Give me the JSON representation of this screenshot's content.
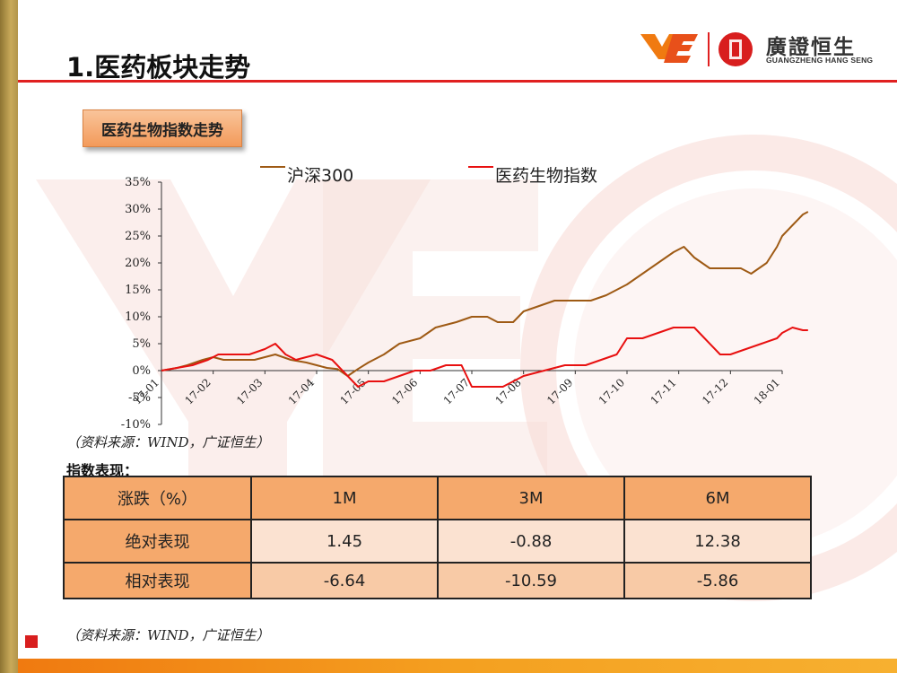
{
  "slide": {
    "title": "1.医药板块走势",
    "section_button": "医药生物指数走势",
    "logo": {
      "name": "廣證恒生",
      "subtitle": "GUANGZHENG HANG SENG"
    },
    "source_note_1": "（资料来源：WIND，广证恒生）",
    "source_note_2": "（资料来源：WIND，广证恒生）",
    "perf_label": "指数表现：",
    "colors": {
      "hs300": "#9e5a14",
      "pharma": "#e81010",
      "table_header": "#f5a96c",
      "title_rule": "#e02020"
    }
  },
  "table": {
    "headers": [
      "涨跌（%）",
      "1M",
      "3M",
      "6M"
    ],
    "rows": [
      [
        "绝对表现",
        "1.45",
        "-0.88",
        "12.38"
      ],
      [
        "相对表现",
        "-6.64",
        "-10.59",
        "-5.86"
      ]
    ]
  },
  "chart_data": {
    "type": "line",
    "x": [
      "17-01",
      "17-02",
      "17-03",
      "17-04",
      "17-05",
      "17-06",
      "17-07",
      "17-08",
      "17-09",
      "17-10",
      "17-11",
      "17-12",
      "18-01"
    ],
    "ylim": [
      -10,
      35
    ],
    "yticks": [
      "35%",
      "30%",
      "25%",
      "20%",
      "15%",
      "10%",
      "5%",
      "0%",
      "-5%",
      "-10%"
    ],
    "legend_position": "top",
    "series": [
      {
        "name": "沪深300",
        "color": "#9e5a14",
        "values": [
          [
            0,
            0
          ],
          [
            0.3,
            0.5
          ],
          [
            0.5,
            1
          ],
          [
            0.8,
            2
          ],
          [
            1,
            2.5
          ],
          [
            1.2,
            2
          ],
          [
            1.5,
            2
          ],
          [
            1.8,
            2
          ],
          [
            2,
            2.5
          ],
          [
            2.2,
            3
          ],
          [
            2.5,
            2
          ],
          [
            2.8,
            1.5
          ],
          [
            3,
            1
          ],
          [
            3.2,
            0.5
          ],
          [
            3.4,
            0.3
          ],
          [
            3.6,
            -1
          ],
          [
            3.8,
            0.3
          ],
          [
            4,
            1.5
          ],
          [
            4.3,
            3
          ],
          [
            4.6,
            5
          ],
          [
            5,
            6
          ],
          [
            5.3,
            8
          ],
          [
            5.7,
            9
          ],
          [
            6,
            10
          ],
          [
            6.3,
            10
          ],
          [
            6.5,
            9
          ],
          [
            6.8,
            9
          ],
          [
            7,
            11
          ],
          [
            7.3,
            12
          ],
          [
            7.6,
            13
          ],
          [
            8,
            13
          ],
          [
            8.3,
            13
          ],
          [
            8.6,
            14
          ],
          [
            9,
            16
          ],
          [
            9.3,
            18
          ],
          [
            9.6,
            20
          ],
          [
            9.9,
            22
          ],
          [
            10.1,
            23
          ],
          [
            10.3,
            21
          ],
          [
            10.6,
            19
          ],
          [
            10.9,
            19
          ],
          [
            11.2,
            19
          ],
          [
            11.4,
            18
          ],
          [
            11.7,
            20
          ],
          [
            11.9,
            23
          ],
          [
            12,
            25
          ],
          [
            12.2,
            27
          ],
          [
            12.4,
            29
          ],
          [
            12.5,
            29.5
          ]
        ]
      },
      {
        "name": "医药生物指数",
        "color": "#e81010",
        "values": [
          [
            0,
            0
          ],
          [
            0.3,
            0.5
          ],
          [
            0.6,
            1
          ],
          [
            0.9,
            2
          ],
          [
            1.1,
            3
          ],
          [
            1.4,
            3
          ],
          [
            1.7,
            3
          ],
          [
            2,
            4
          ],
          [
            2.2,
            5
          ],
          [
            2.4,
            3
          ],
          [
            2.6,
            2
          ],
          [
            3,
            3
          ],
          [
            3.3,
            2
          ],
          [
            3.5,
            0
          ],
          [
            3.8,
            -3
          ],
          [
            4,
            -2
          ],
          [
            4.3,
            -2
          ],
          [
            4.6,
            -1
          ],
          [
            4.9,
            0
          ],
          [
            5.2,
            0
          ],
          [
            5.5,
            1
          ],
          [
            5.8,
            1
          ],
          [
            6,
            -3
          ],
          [
            6.3,
            -3
          ],
          [
            6.6,
            -3
          ],
          [
            7,
            -1
          ],
          [
            7.4,
            0
          ],
          [
            7.8,
            1
          ],
          [
            8.2,
            1
          ],
          [
            8.5,
            2
          ],
          [
            8.8,
            3
          ],
          [
            9,
            6
          ],
          [
            9.3,
            6
          ],
          [
            9.6,
            7
          ],
          [
            9.9,
            8
          ],
          [
            10.1,
            8
          ],
          [
            10.3,
            8
          ],
          [
            10.5,
            6
          ],
          [
            10.8,
            3
          ],
          [
            11,
            3
          ],
          [
            11.3,
            4
          ],
          [
            11.6,
            5
          ],
          [
            11.9,
            6
          ],
          [
            12,
            7
          ],
          [
            12.2,
            8
          ],
          [
            12.4,
            7.5
          ],
          [
            12.5,
            7.5
          ]
        ]
      }
    ]
  }
}
